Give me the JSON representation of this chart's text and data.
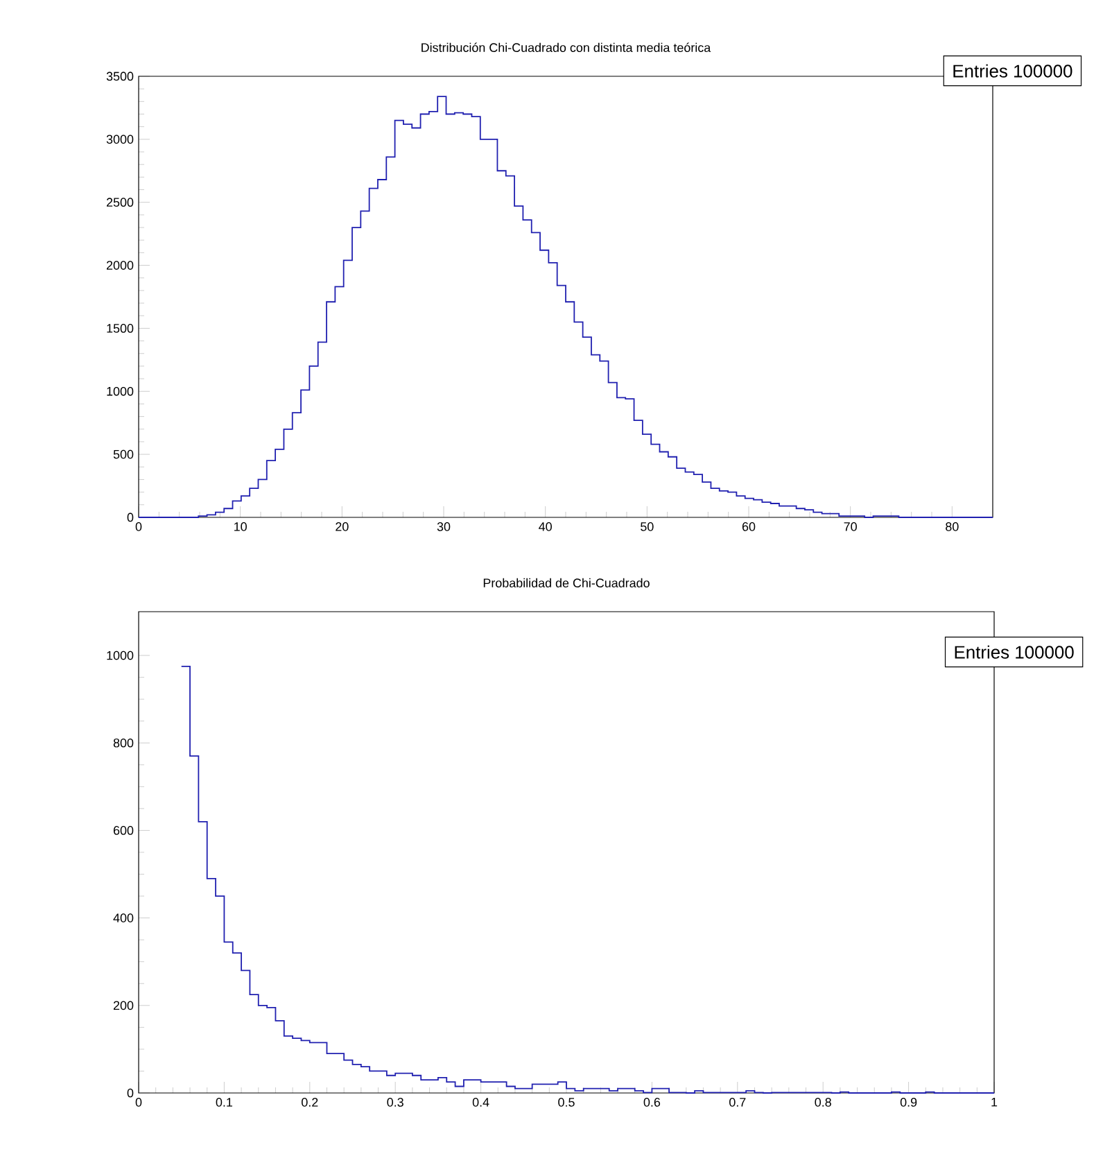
{
  "chart_data": [
    {
      "type": "histogram",
      "title": "Distribución Chi-Cuadrado con distinta media teórica",
      "color": "#2020b0",
      "bins": [
        0,
        0.84,
        1.68,
        2.52,
        3.36,
        4.2,
        5.04,
        5.88,
        6.72,
        7.56,
        8.4,
        9.24,
        10.08,
        10.92,
        11.76,
        12.6,
        13.44,
        14.28,
        15.12,
        15.96,
        16.8,
        17.64,
        18.48,
        19.32,
        20.16,
        21,
        21.84,
        22.68,
        23.52,
        24.36,
        25.2,
        26.04,
        26.88,
        27.72,
        28.56,
        29.4,
        30.24,
        31.08,
        31.92,
        32.76,
        33.6,
        34.44,
        35.28,
        36.12,
        36.96,
        37.8,
        38.64,
        39.48,
        40.32,
        41.16,
        42,
        42.84,
        43.68,
        44.52,
        45.36,
        46.2,
        47.04,
        47.88,
        48.72,
        49.56,
        50.4,
        51.24,
        52.08,
        52.92,
        53.76,
        54.6,
        55.44,
        56.28,
        57.12,
        57.96,
        58.8,
        59.64,
        60.48,
        61.32,
        62.16,
        63,
        63.84,
        64.68,
        65.52,
        66.36,
        67.2,
        68.04,
        68.88,
        69.72,
        70.56,
        71.4,
        72.24,
        73.08,
        73.92,
        74.76,
        75.6,
        76.44,
        77.28,
        78.12,
        78.96,
        79.8,
        80.64,
        81.48,
        82.32,
        83.16,
        84
      ],
      "values": [
        0,
        0,
        0,
        0,
        0,
        0,
        0,
        10,
        20,
        40,
        70,
        130,
        170,
        230,
        300,
        450,
        540,
        700,
        830,
        1010,
        1200,
        1390,
        1710,
        1830,
        2040,
        2300,
        2430,
        2610,
        2680,
        2860,
        3150,
        3120,
        3090,
        3200,
        3220,
        3340,
        3200,
        3210,
        3200,
        3180,
        3000,
        3000,
        2750,
        2710,
        2470,
        2360,
        2260,
        2120,
        2020,
        1840,
        1710,
        1550,
        1430,
        1290,
        1240,
        1070,
        950,
        940,
        770,
        660,
        580,
        520,
        480,
        390,
        360,
        340,
        280,
        230,
        210,
        200,
        170,
        150,
        140,
        120,
        110,
        90,
        90,
        70,
        60,
        40,
        30,
        30,
        10,
        10,
        10,
        0,
        10,
        10,
        10,
        0,
        0,
        0,
        0,
        0,
        0,
        0,
        0,
        0,
        0,
        0
      ],
      "xlim": [
        0,
        84
      ],
      "ylim": [
        0,
        3500
      ],
      "xticks": [
        0,
        10,
        20,
        30,
        40,
        50,
        60,
        70,
        80
      ],
      "yticks": [
        0,
        500,
        1000,
        1500,
        2000,
        2500,
        3000,
        3500
      ],
      "annotations": [
        "Entries  100000"
      ]
    },
    {
      "type": "histogram",
      "title": "Probabilidad de Chi-Cuadrado",
      "color": "#2020b0",
      "bins": [
        0.05,
        0.06,
        0.07,
        0.08,
        0.09,
        0.1,
        0.11,
        0.12,
        0.13,
        0.14,
        0.15,
        0.16,
        0.17,
        0.18,
        0.19,
        0.2,
        0.21,
        0.22,
        0.23,
        0.24,
        0.25,
        0.26,
        0.27,
        0.28,
        0.29,
        0.3,
        0.31,
        0.32,
        0.33,
        0.34,
        0.35,
        0.36,
        0.37,
        0.38,
        0.39,
        0.4,
        0.41,
        0.42,
        0.43,
        0.44,
        0.45,
        0.46,
        0.47,
        0.48,
        0.49,
        0.5,
        0.51,
        0.52,
        0.53,
        0.54,
        0.55,
        0.56,
        0.57,
        0.58,
        0.59,
        0.6,
        0.61,
        0.62,
        0.63,
        0.64,
        0.65,
        0.66,
        0.67,
        0.68,
        0.69,
        0.7,
        0.71,
        0.72,
        0.73,
        0.74,
        0.75,
        0.76,
        0.77,
        0.78,
        0.79,
        0.8,
        0.81,
        0.82,
        0.83,
        0.84,
        0.85,
        0.86,
        0.87,
        0.88,
        0.89,
        0.9,
        0.91,
        0.92,
        0.93,
        0.94,
        0.95,
        0.96,
        0.97,
        0.98,
        0.99,
        1
      ],
      "values": [
        975,
        770,
        620,
        490,
        450,
        345,
        320,
        280,
        225,
        200,
        195,
        165,
        130,
        125,
        120,
        115,
        115,
        90,
        90,
        75,
        65,
        60,
        50,
        50,
        40,
        45,
        45,
        40,
        30,
        30,
        35,
        25,
        15,
        30,
        30,
        25,
        25,
        25,
        15,
        10,
        10,
        20,
        20,
        20,
        25,
        10,
        5,
        10,
        10,
        10,
        5,
        10,
        10,
        5,
        1,
        10,
        10,
        1,
        1,
        0,
        5,
        1,
        1,
        1,
        1,
        1,
        5,
        1,
        0,
        1,
        1,
        1,
        1,
        1,
        1,
        1,
        0,
        2,
        0,
        0,
        0,
        0,
        0,
        2,
        0,
        0,
        0,
        2,
        0,
        0,
        0,
        0,
        0,
        0,
        0
      ],
      "xlim": [
        0,
        1
      ],
      "ylim": [
        0,
        1100
      ],
      "xticks": [
        0,
        0.1,
        0.2,
        0.3,
        0.4,
        0.5,
        0.6,
        0.7,
        0.8,
        0.9,
        1
      ],
      "yticks": [
        0,
        200,
        400,
        600,
        800,
        1000
      ],
      "annotations": [
        "Entries  100000"
      ]
    }
  ]
}
